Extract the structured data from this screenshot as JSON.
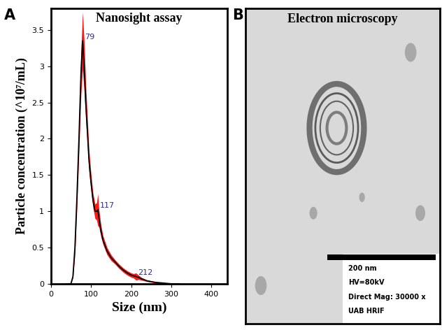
{
  "chart_data": {
    "type": "line",
    "panel_label": "A",
    "title": "Nanosight assay",
    "x_label": "Size (nm)",
    "y_label": "Particle concentration (^10⁷/mL)",
    "xlim": [
      0,
      440
    ],
    "xticks": [
      0,
      100,
      200,
      300,
      400
    ],
    "ylim": [
      0,
      3.8
    ],
    "yticks": [
      0,
      0.5,
      1,
      1.5,
      2,
      2.5,
      3,
      3.5
    ],
    "grid": false,
    "series": [
      {
        "name": "Particle concentration",
        "color": "#000000",
        "x": [
          40,
          50,
          55,
          60,
          65,
          70,
          75,
          79,
          83,
          87,
          90,
          95,
          100,
          105,
          110,
          114,
          117,
          120,
          125,
          130,
          140,
          150,
          160,
          170,
          180,
          190,
          200,
          206,
          212,
          218,
          225,
          240,
          260,
          280,
          300,
          320
        ],
        "values": [
          0,
          0,
          0.1,
          0.5,
          1.2,
          2.0,
          2.9,
          3.35,
          3.0,
          2.5,
          2.2,
          1.7,
          1.4,
          1.15,
          1.0,
          1.0,
          1.02,
          0.9,
          0.72,
          0.6,
          0.45,
          0.36,
          0.3,
          0.24,
          0.19,
          0.15,
          0.12,
          0.11,
          0.1,
          0.09,
          0.07,
          0.04,
          0.02,
          0.01,
          0,
          0
        ],
        "error": [
          0,
          0,
          0.02,
          0.1,
          0.15,
          0.2,
          0.3,
          0.4,
          0.35,
          0.25,
          0.2,
          0.15,
          0.12,
          0.1,
          0.1,
          0.12,
          0.22,
          0.12,
          0.08,
          0.06,
          0.05,
          0.04,
          0.03,
          0.03,
          0.03,
          0.03,
          0.03,
          0.03,
          0.05,
          0.03,
          0.02,
          0.01,
          0.01,
          0,
          0,
          0
        ]
      }
    ],
    "annotations": [
      {
        "text": "79",
        "x": 79,
        "y": 3.35
      },
      {
        "text": "117",
        "x": 117,
        "y": 1.02
      },
      {
        "text": "212",
        "x": 212,
        "y": 0.1
      }
    ]
  },
  "image_panel": {
    "panel_label": "B",
    "title": "Electron microscopy",
    "scale_bar": "200 nm",
    "info": [
      "HV=80kV",
      "Direct Mag: 30000 x",
      "UAB HRIF"
    ]
  }
}
